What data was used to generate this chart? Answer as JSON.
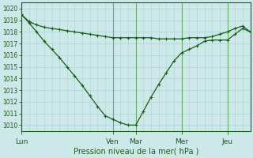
{
  "xlabel": "Pression niveau de la mer( hPa )",
  "bg_color": "#cce8e8",
  "grid_color": "#b0d8d8",
  "line_color": "#1a5c1a",
  "ylim": [
    1009.5,
    1020.5
  ],
  "yticks": [
    1010,
    1011,
    1012,
    1013,
    1014,
    1015,
    1016,
    1017,
    1018,
    1019,
    1020
  ],
  "day_labels": [
    "Lun",
    "Ven",
    "Mar",
    "Mer",
    "Jeu"
  ],
  "day_x": [
    0,
    48,
    60,
    84,
    108
  ],
  "xlim": [
    0,
    120
  ],
  "line1_x": [
    0,
    4,
    8,
    12,
    16,
    20,
    24,
    28,
    32,
    36,
    40,
    44,
    48,
    52,
    56,
    60,
    64,
    68,
    72,
    76,
    80,
    84,
    88,
    92,
    96,
    100,
    104,
    108,
    112,
    116,
    120
  ],
  "line1_y": [
    1019.5,
    1018.9,
    1018.6,
    1018.4,
    1018.3,
    1018.2,
    1018.1,
    1018.0,
    1017.9,
    1017.8,
    1017.7,
    1017.6,
    1017.5,
    1017.5,
    1017.5,
    1017.5,
    1017.5,
    1017.5,
    1017.4,
    1017.4,
    1017.4,
    1017.4,
    1017.5,
    1017.5,
    1017.5,
    1017.6,
    1017.8,
    1018.0,
    1018.3,
    1018.5,
    1018.0
  ],
  "line2_x": [
    0,
    4,
    8,
    12,
    16,
    20,
    24,
    28,
    32,
    36,
    40,
    44,
    48,
    52,
    56,
    60,
    64,
    68,
    72,
    76,
    80,
    84,
    88,
    92,
    96,
    100,
    104,
    108,
    112,
    116,
    120
  ],
  "line2_y": [
    1019.5,
    1018.8,
    1018.0,
    1017.2,
    1016.5,
    1015.8,
    1015.0,
    1014.2,
    1013.4,
    1012.5,
    1011.6,
    1010.8,
    1010.5,
    1010.2,
    1010.0,
    1010.0,
    1011.2,
    1012.4,
    1013.5,
    1014.5,
    1015.5,
    1016.2,
    1016.5,
    1016.8,
    1017.2,
    1017.3,
    1017.3,
    1017.3,
    1017.8,
    1018.3,
    1018.0
  ]
}
